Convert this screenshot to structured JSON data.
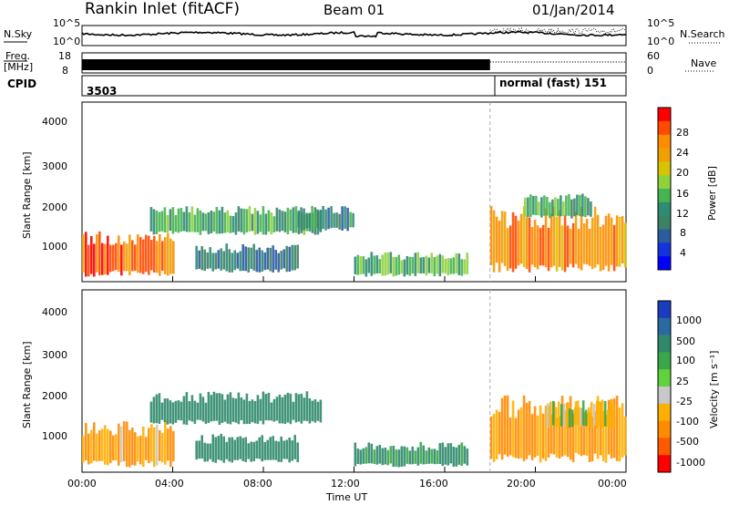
{
  "header": {
    "station": "Rankin Inlet (fitACF)",
    "beam": "Beam 01",
    "date": "01/Jan/2014"
  },
  "top_panel": {
    "left_label": "N.Sky",
    "left_ticks": [
      "10^5",
      "10^0"
    ],
    "right_ticks": [
      "10^5",
      "10^0"
    ],
    "right_label": "N.Search",
    "right_legend_style": "dotted"
  },
  "freq_panel": {
    "left_label_1": "Freq.",
    "left_label_2": "[MHz]",
    "left_ticks": [
      "18",
      "8"
    ],
    "right_ticks": [
      "60",
      "0"
    ],
    "right_label": "Nave",
    "right_legend_style": "dotted"
  },
  "cpid_panel": {
    "label": "CPID",
    "segments": [
      {
        "text": "3503"
      },
      {
        "text": "normal (fast) 151"
      }
    ]
  },
  "power_panel": {
    "ylabel": "Slant Range [km]",
    "yticks": [
      "4000",
      "3000",
      "2000",
      "1000"
    ],
    "colorbar_label": "Power [dB]",
    "colorbar_ticks": [
      "28",
      "24",
      "20",
      "16",
      "12",
      "8",
      "4"
    ],
    "colorbar_colors": [
      "#ff0000",
      "#ff4a00",
      "#ff8c00",
      "#f0a000",
      "#d7c400",
      "#8fd23c",
      "#46b450",
      "#2f8c74",
      "#3c8264",
      "#2a5c9e",
      "#1433dc",
      "#0000ff"
    ]
  },
  "velocity_panel": {
    "ylabel": "Slant Range [km]",
    "yticks": [
      "4000",
      "3000",
      "2000",
      "1000"
    ],
    "colorbar_label": "Velocity [m s⁻¹]",
    "colorbar_ticks": [
      "1000",
      "500",
      "100",
      "25",
      "-25",
      "-100",
      "-500",
      "-1000"
    ],
    "colorbar_colors": [
      "#1a3cbe",
      "#2a6aa0",
      "#2f8a6c",
      "#3aa848",
      "#5fd23c",
      "#c8c8c8",
      "#ffb000",
      "#ff8c00",
      "#ff5a00",
      "#ff0000"
    ]
  },
  "x_axis": {
    "ticks": [
      "00:00",
      "04:00",
      "08:00",
      "12:00",
      "16:00",
      "20:00",
      "00:00"
    ],
    "label": "Time UT"
  },
  "chart_data": {
    "type": "heatmap",
    "x_range_hours": [
      0,
      24
    ],
    "y_range_km": [
      180,
      4500
    ],
    "mode_change_hour": 18.0,
    "power_regions": [
      {
        "t0": 0.0,
        "t1": 4.0,
        "r0": 300,
        "r1": 1400,
        "value_db": 26
      },
      {
        "t0": 3.0,
        "t1": 10.5,
        "r0": 1300,
        "r1": 2000,
        "value_db": 12
      },
      {
        "t0": 5.0,
        "t1": 9.5,
        "r0": 400,
        "r1": 1100,
        "value_db": 8
      },
      {
        "t0": 9.5,
        "t1": 12.0,
        "r0": 1400,
        "r1": 2000,
        "value_db": 10
      },
      {
        "t0": 12.0,
        "t1": 17.0,
        "r0": 300,
        "r1": 900,
        "value_db": 14
      },
      {
        "t0": 18.0,
        "t1": 24.0,
        "r0": 400,
        "r1": 2000,
        "value_db": 24
      },
      {
        "t0": 19.5,
        "t1": 22.5,
        "r0": 1700,
        "r1": 2300,
        "value_db": 12
      }
    ],
    "velocity_regions": [
      {
        "t0": 0.0,
        "t1": 4.0,
        "r0": 300,
        "r1": 1400,
        "value_ms": -100
      },
      {
        "t0": 3.0,
        "t1": 10.5,
        "r0": 1300,
        "r1": 2100,
        "value_ms": 300
      },
      {
        "t0": 5.0,
        "t1": 9.5,
        "r0": 400,
        "r1": 1100,
        "value_ms": 300
      },
      {
        "t0": 12.0,
        "t1": 17.0,
        "r0": 300,
        "r1": 900,
        "value_ms": 150
      },
      {
        "t0": 18.0,
        "t1": 24.0,
        "r0": 400,
        "r1": 2000,
        "value_ms": -150
      },
      {
        "t0": 20.5,
        "t1": 23.5,
        "r0": 1200,
        "r1": 1900,
        "value_ms": 10
      }
    ]
  }
}
